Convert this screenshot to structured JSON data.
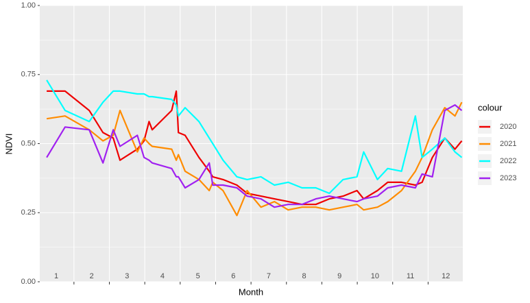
{
  "chart_data": {
    "type": "line",
    "x_label": "Month",
    "y_label": "NDVI",
    "legend_title": "colour",
    "legend_position": "right",
    "grid": true,
    "xlim": [
      0.535,
      12.48
    ],
    "xticks": [
      1,
      2,
      3,
      4,
      5,
      6,
      7,
      8,
      9,
      10,
      11,
      12
    ],
    "ylim": [
      0,
      1
    ],
    "yticks": [
      {
        "value": 0,
        "label": "0.00"
      },
      {
        "value": 0.25,
        "label": "0.25"
      },
      {
        "value": 0.5,
        "label": "0.50"
      },
      {
        "value": 0.75,
        "label": "0.75"
      },
      {
        "value": 1,
        "label": "1.00"
      }
    ],
    "x": [
      0.73,
      1.25,
      1.93,
      2.32,
      2.61,
      2.8,
      3.29,
      3.48,
      3.62,
      3.71,
      4.26,
      4.39,
      4.45,
      4.64,
      5.03,
      5.32,
      5.42,
      5.71,
      6.1,
      6.39,
      6.78,
      7.16,
      7.55,
      7.94,
      8.33,
      8.71,
      9.1,
      9.49,
      9.68,
      10.07,
      10.36,
      10.75,
      11.14,
      11.33,
      11.62,
      11.97,
      12.26,
      12.45
    ],
    "series": [
      {
        "name": "2020",
        "color": "#ee0000",
        "values": [
          0.69,
          0.69,
          0.62,
          0.54,
          0.52,
          0.44,
          0.48,
          0.51,
          0.58,
          0.55,
          0.62,
          0.69,
          0.54,
          0.53,
          0.45,
          0.4,
          0.38,
          0.37,
          0.35,
          0.32,
          0.31,
          0.3,
          0.29,
          0.28,
          0.28,
          0.3,
          0.31,
          0.33,
          0.3,
          0.33,
          0.36,
          0.36,
          0.35,
          0.36,
          0.45,
          0.52,
          0.48,
          0.51
        ]
      },
      {
        "name": "2021",
        "color": "#ff8c00",
        "values": [
          0.59,
          0.6,
          0.55,
          0.51,
          0.53,
          0.62,
          0.47,
          0.52,
          0.5,
          0.49,
          0.48,
          0.44,
          0.46,
          0.4,
          0.37,
          0.33,
          0.36,
          0.33,
          0.24,
          0.33,
          0.27,
          0.29,
          0.26,
          0.27,
          0.27,
          0.26,
          0.27,
          0.28,
          0.26,
          0.27,
          0.29,
          0.33,
          0.4,
          0.45,
          0.55,
          0.63,
          0.6,
          0.65
        ]
      },
      {
        "name": "2022",
        "color": "#00ffff",
        "values": [
          0.73,
          0.62,
          0.58,
          0.65,
          0.69,
          0.69,
          0.68,
          0.68,
          0.67,
          0.67,
          0.66,
          0.64,
          0.6,
          0.63,
          0.58,
          0.52,
          0.5,
          0.44,
          0.38,
          0.37,
          0.38,
          0.35,
          0.36,
          0.34,
          0.34,
          0.32,
          0.37,
          0.38,
          0.47,
          0.37,
          0.41,
          0.4,
          0.6,
          0.45,
          0.48,
          0.52,
          0.47,
          0.45
        ]
      },
      {
        "name": "2023",
        "color": "#a020f0",
        "values": [
          0.45,
          0.56,
          0.55,
          0.43,
          0.55,
          0.49,
          0.53,
          0.45,
          0.44,
          0.43,
          0.41,
          0.38,
          0.38,
          0.34,
          0.37,
          0.43,
          0.35,
          0.35,
          0.34,
          0.31,
          0.3,
          0.27,
          0.28,
          0.28,
          0.3,
          0.31,
          0.3,
          0.29,
          0.3,
          0.31,
          0.34,
          0.35,
          0.34,
          0.39,
          0.38,
          0.62,
          0.64,
          0.62
        ]
      }
    ]
  }
}
